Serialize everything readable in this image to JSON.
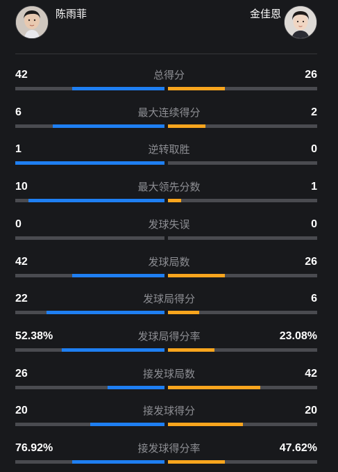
{
  "players": {
    "left": {
      "name": "陈雨菲",
      "color": "#1f7ff2"
    },
    "right": {
      "name": "金佳恩",
      "color": "#f8a51e"
    }
  },
  "stats": [
    {
      "label": "总得分",
      "left": "42",
      "right": "26",
      "left_fraction": 0.62,
      "right_fraction": 0.38
    },
    {
      "label": "最大连续得分",
      "left": "6",
      "right": "2",
      "left_fraction": 0.75,
      "right_fraction": 0.25
    },
    {
      "label": "逆转取胜",
      "left": "1",
      "right": "0",
      "left_fraction": 1.0,
      "right_fraction": 0.0
    },
    {
      "label": "最大领先分数",
      "left": "10",
      "right": "1",
      "left_fraction": 0.91,
      "right_fraction": 0.09
    },
    {
      "label": "发球失误",
      "left": "0",
      "right": "0",
      "left_fraction": 0.0,
      "right_fraction": 0.0
    },
    {
      "label": "发球局数",
      "left": "42",
      "right": "26",
      "left_fraction": 0.62,
      "right_fraction": 0.38
    },
    {
      "label": "发球局得分",
      "left": "22",
      "right": "6",
      "left_fraction": 0.79,
      "right_fraction": 0.21
    },
    {
      "label": "发球局得分率",
      "left": "52.38%",
      "right": "23.08%",
      "left_fraction": 0.69,
      "right_fraction": 0.31
    },
    {
      "label": "接发球局数",
      "left": "26",
      "right": "42",
      "left_fraction": 0.38,
      "right_fraction": 0.62
    },
    {
      "label": "接发球得分",
      "left": "20",
      "right": "20",
      "left_fraction": 0.5,
      "right_fraction": 0.5
    },
    {
      "label": "接发球得分率",
      "left": "76.92%",
      "right": "47.62%",
      "left_fraction": 0.62,
      "right_fraction": 0.38
    }
  ]
}
